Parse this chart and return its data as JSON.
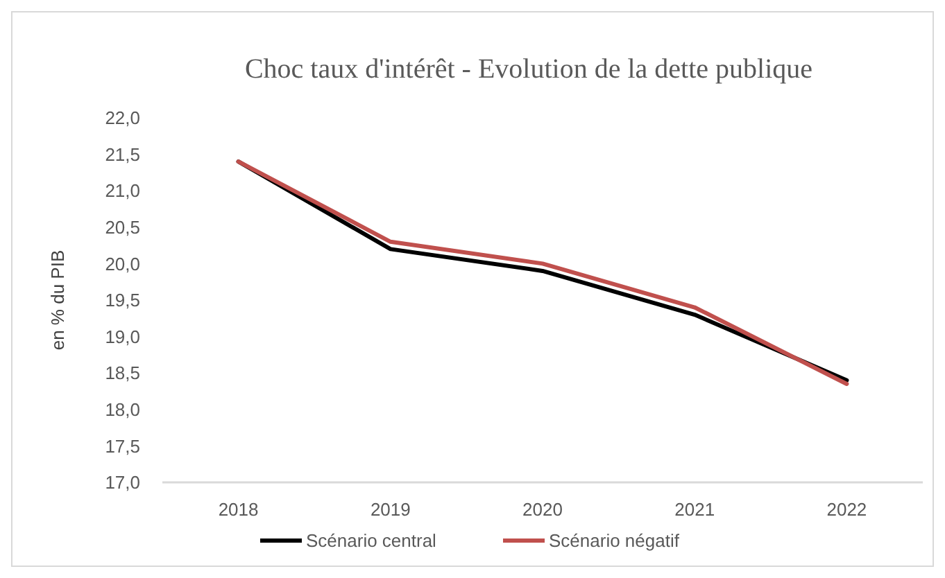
{
  "chart_data": {
    "type": "line",
    "title": "Choc taux d'intérêt - Evolution de la dette publique",
    "ylabel": "en % du PIB",
    "categories": [
      "2018",
      "2019",
      "2020",
      "2021",
      "2022"
    ],
    "series": [
      {
        "name": "Scénario central",
        "color": "#000000",
        "values": [
          21.4,
          20.2,
          19.9,
          19.3,
          18.4
        ]
      },
      {
        "name": "Scénario négatif",
        "color": "#c0504d",
        "values": [
          21.4,
          20.3,
          20.0,
          19.4,
          18.35
        ]
      }
    ],
    "ylim": [
      17,
      22
    ],
    "yticks": [
      {
        "value": 17,
        "label": "17,0"
      },
      {
        "value": 17.5,
        "label": "17,5"
      },
      {
        "value": 18,
        "label": "18,0"
      },
      {
        "value": 18.5,
        "label": "18,5"
      },
      {
        "value": 19,
        "label": "19,0"
      },
      {
        "value": 19.5,
        "label": "19,5"
      },
      {
        "value": 20,
        "label": "20,0"
      },
      {
        "value": 20.5,
        "label": "20,5"
      },
      {
        "value": 21,
        "label": "21,0"
      },
      {
        "value": 21.5,
        "label": "21,5"
      },
      {
        "value": 22,
        "label": "22,0"
      }
    ],
    "grid": false,
    "legend": "bottom",
    "marker": "none",
    "line_style": "solid"
  }
}
